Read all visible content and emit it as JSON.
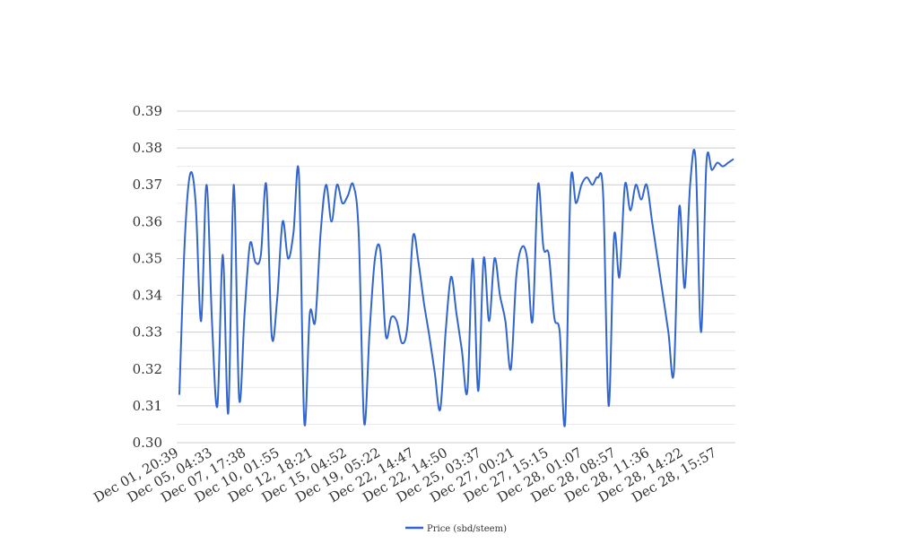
{
  "chart_data": {
    "type": "line",
    "title": "",
    "xlabel": "",
    "ylabel": "",
    "ylim": [
      0.3,
      0.39
    ],
    "yticks": [
      "0.30",
      "0.31",
      "0.32",
      "0.33",
      "0.34",
      "0.35",
      "0.36",
      "0.37",
      "0.38",
      "0.39"
    ],
    "x_tick_labels": [
      "Dec 01, 20:39",
      "Dec 05, 04:33",
      "Dec 07, 17:38",
      "Dec 10, 01:55",
      "Dec 12, 18:21",
      "Dec 15, 04:52",
      "Dec 19, 05:22",
      "Dec 22, 14:47",
      "Dec 22, 14:50",
      "Dec 25, 03:37",
      "Dec 27, 00:21",
      "Dec 27, 15:15",
      "Dec 28, 01:07",
      "Dec 28, 08:57",
      "Dec 28, 11:36",
      "Dec 28, 14:22",
      "Dec 28, 15:57"
    ],
    "grid": true,
    "legend_position": "bottom-center",
    "color": "#3366cc",
    "series": [
      {
        "name": "Price (sbd/steem)",
        "values": [
          0.313,
          0.355,
          0.373,
          0.365,
          0.333,
          0.37,
          0.333,
          0.31,
          0.351,
          0.308,
          0.37,
          0.312,
          0.335,
          0.354,
          0.349,
          0.351,
          0.37,
          0.329,
          0.339,
          0.36,
          0.35,
          0.357,
          0.373,
          0.3055,
          0.335,
          0.333,
          0.357,
          0.37,
          0.36,
          0.37,
          0.365,
          0.367,
          0.37,
          0.357,
          0.3055,
          0.33,
          0.35,
          0.352,
          0.329,
          0.334,
          0.333,
          0.327,
          0.332,
          0.356,
          0.349,
          0.338,
          0.329,
          0.319,
          0.309,
          0.33,
          0.345,
          0.335,
          0.325,
          0.314,
          0.35,
          0.314,
          0.35,
          0.333,
          0.35,
          0.34,
          0.333,
          0.32,
          0.345,
          0.353,
          0.35,
          0.333,
          0.37,
          0.353,
          0.351,
          0.334,
          0.33,
          0.3055,
          0.37,
          0.365,
          0.37,
          0.372,
          0.37,
          0.372,
          0.367,
          0.31,
          0.356,
          0.345,
          0.37,
          0.363,
          0.37,
          0.366,
          0.37,
          0.36,
          0.35,
          0.34,
          0.33,
          0.319,
          0.364,
          0.342,
          0.37,
          0.377,
          0.33,
          0.376,
          0.374,
          0.376,
          0.375,
          0.376,
          0.377
        ]
      }
    ]
  }
}
